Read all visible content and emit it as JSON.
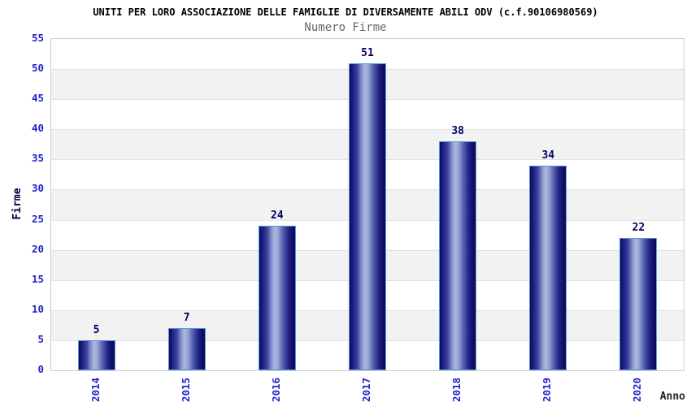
{
  "chart_data": {
    "type": "bar",
    "title": "UNITI PER LORO ASSOCIAZIONE DELLE FAMIGLIE DI DIVERSAMENTE ABILI ODV (c.f.90106980569)",
    "subtitle": "Numero Firme",
    "categories": [
      "2014",
      "2015",
      "2016",
      "2017",
      "2018",
      "2019",
      "2020"
    ],
    "values": [
      5,
      7,
      24,
      51,
      38,
      34,
      22
    ],
    "xlabel": "Anno",
    "ylabel": "Firme",
    "ylim": [
      0,
      55
    ],
    "ytick_step": 5,
    "yticks": [
      0,
      5,
      10,
      15,
      20,
      25,
      30,
      35,
      40,
      45,
      50,
      55
    ],
    "grid": "horizontal-alternating-bands",
    "legend": "none",
    "colors": {
      "title": "#000000",
      "subtitle": "#666666",
      "tick_label": "#2222cc",
      "value_label": "#000066",
      "axis_label": "#000044",
      "band_gray": "#f2f2f2",
      "band_white": "#ffffff",
      "plot_border": "#cccccc",
      "bar_border": "#5599dd",
      "bar_dark": "#0c0c5a",
      "bar_highlight": "#aeb6e0"
    }
  }
}
